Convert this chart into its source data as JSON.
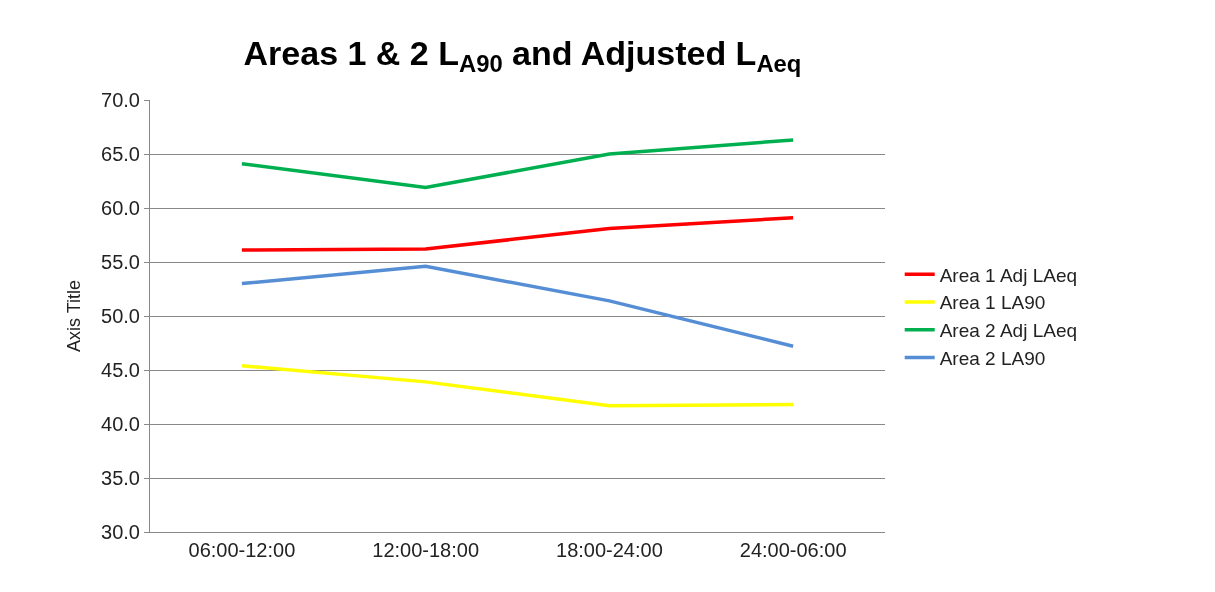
{
  "chart_data": {
    "type": "line",
    "title": "Areas 1 & 2 L$_{A90}$ and Adjusted L$_{Aeq}$",
    "ylabel": "Axis Title",
    "categories": [
      "06:00-12:00",
      "12:00-18:00",
      "18:00-24:00",
      "24:00-06:00"
    ],
    "series": [
      {
        "name": "Area 1 Adj LAeq",
        "color": "#ff0000",
        "values": [
          56.1,
          56.2,
          58.1,
          59.1
        ]
      },
      {
        "name": "Area 1 LA90",
        "color": "#ffff00",
        "values": [
          45.4,
          43.9,
          41.7,
          41.8
        ]
      },
      {
        "name": "Area 2 Adj LAeq",
        "color": "#00b050",
        "values": [
          64.1,
          61.9,
          65.0,
          66.3
        ]
      },
      {
        "name": "Area 2 LA90",
        "color": "#558ed5",
        "values": [
          53.0,
          54.6,
          51.4,
          47.2
        ]
      }
    ],
    "ylim": [
      30,
      70
    ],
    "yticks": [
      {
        "value": 30,
        "label": "30.0"
      },
      {
        "value": 35,
        "label": "35.0"
      },
      {
        "value": 40,
        "label": "40.0"
      },
      {
        "value": 45,
        "label": "45.0"
      },
      {
        "value": 50,
        "label": "50.0"
      },
      {
        "value": 55,
        "label": "55.0"
      },
      {
        "value": 60,
        "label": "60.0"
      },
      {
        "value": 65,
        "label": "65.0"
      },
      {
        "value": 70,
        "label": "70.0"
      }
    ],
    "grid": "y",
    "legend": "right",
    "marker": "none",
    "line_style": "solid"
  }
}
